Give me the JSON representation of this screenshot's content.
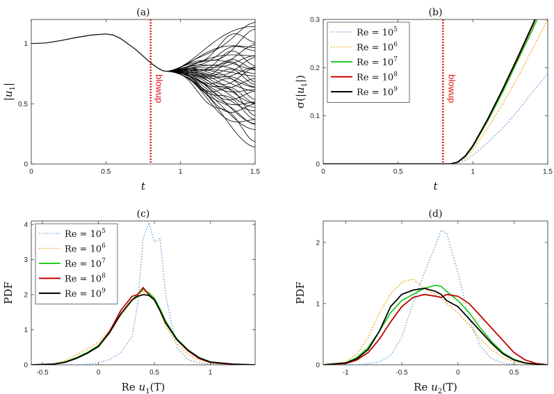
{
  "chart_data": [
    {
      "id": "a",
      "type": "line",
      "title": "(a)",
      "xlabel": "t",
      "ylabel": "|u1|",
      "xlim": [
        0,
        1.5
      ],
      "ylim": [
        0,
        1.2
      ],
      "xticks": [
        "0",
        "0.5",
        "1",
        "1.5"
      ],
      "yticks": [
        "0",
        "0.5",
        "1"
      ],
      "annotation": {
        "text": "blowup",
        "x": 0.8,
        "color": "#e01010"
      },
      "common_curve": {
        "x": [
          0,
          0.1,
          0.2,
          0.3,
          0.4,
          0.5,
          0.55,
          0.6,
          0.7,
          0.8,
          0.85,
          0.88,
          0.9
        ],
        "y": [
          1.0,
          1.005,
          1.025,
          1.05,
          1.07,
          1.08,
          1.07,
          1.04,
          0.95,
          0.84,
          0.795,
          0.775,
          0.77
        ]
      },
      "ensemble_endpoints": [
        1.18,
        1.12,
        1.08,
        1.05,
        1.02,
        0.98,
        0.95,
        0.92,
        0.9,
        0.88,
        0.86,
        0.84,
        0.82,
        0.8,
        0.78,
        0.77,
        0.75,
        0.73,
        0.72,
        0.7,
        0.68,
        0.66,
        0.64,
        0.62,
        0.6,
        0.58,
        0.56,
        0.54,
        0.52,
        0.5,
        0.48,
        0.46,
        0.44,
        0.42,
        0.4,
        0.37,
        0.34,
        0.3,
        0.27,
        0.24
      ],
      "grid": false
    },
    {
      "id": "b",
      "type": "line",
      "title": "(b)",
      "xlabel": "t",
      "ylabel": "σ(|u1|)",
      "xlim": [
        0,
        1.5
      ],
      "ylim": [
        0,
        0.3
      ],
      "xticks": [
        "0",
        "0.5",
        "1",
        "1.5"
      ],
      "yticks": [
        "0",
        "0.1",
        "0.2",
        "0.3"
      ],
      "annotation": {
        "text": "blowup",
        "x": 0.8,
        "color": "#e01010"
      },
      "legend_position": "top-left",
      "x": [
        0,
        0.8,
        0.85,
        0.9,
        0.95,
        1.0,
        1.1,
        1.2,
        1.3,
        1.4,
        1.5
      ],
      "series": [
        {
          "name": "Re = 10^5",
          "color": "#6fa8dc",
          "dash": "dot",
          "values": [
            0,
            0,
            0,
            0.002,
            0.008,
            0.018,
            0.045,
            0.075,
            0.11,
            0.15,
            0.188
          ]
        },
        {
          "name": "Re = 10^6",
          "color": "#f0a000",
          "dash": "dot",
          "values": [
            0,
            0,
            0,
            0.003,
            0.013,
            0.03,
            0.075,
            0.125,
            0.18,
            0.24,
            0.3
          ]
        },
        {
          "name": "Re = 10^7",
          "color": "#22cc22",
          "dash": "solid",
          "values": [
            0,
            0,
            0,
            0.004,
            0.016,
            0.036,
            0.09,
            0.15,
            0.215,
            0.28,
            0.35
          ]
        },
        {
          "name": "Re = 10^8",
          "color": "#c00000",
          "dash": "solid",
          "values": [
            0,
            0,
            0,
            0.004,
            0.017,
            0.038,
            0.093,
            0.155,
            0.22,
            0.288,
            0.36
          ]
        },
        {
          "name": "Re = 10^9",
          "color": "#000000",
          "dash": "solid",
          "values": [
            0,
            0,
            0,
            0.004,
            0.017,
            0.038,
            0.094,
            0.156,
            0.222,
            0.29,
            0.36
          ]
        }
      ],
      "grid": false
    },
    {
      "id": "c",
      "type": "line",
      "title": "(c)",
      "xlabel": "Re u1(T)",
      "ylabel": "PDF",
      "xlim": [
        -0.6,
        1.4
      ],
      "ylim": [
        0,
        4.1
      ],
      "xticks": [
        "-0.5",
        "0",
        "0.5",
        "1"
      ],
      "yticks": [
        "0",
        "1",
        "2",
        "3",
        "4"
      ],
      "legend_position": "top-left",
      "x": [
        -0.6,
        -0.4,
        -0.3,
        -0.2,
        -0.1,
        0,
        0.1,
        0.2,
        0.3,
        0.35,
        0.4,
        0.45,
        0.5,
        0.55,
        0.6,
        0.7,
        0.8,
        0.9,
        1.0,
        1.2,
        1.4
      ],
      "series": [
        {
          "name": "Re = 10^5",
          "color": "#6fa8dc",
          "dash": "dot",
          "values": [
            0,
            0,
            0,
            0,
            0.02,
            0.06,
            0.15,
            0.35,
            0.8,
            1.7,
            3.6,
            4.05,
            3.5,
            3.6,
            2.0,
            0.5,
            0.15,
            0.05,
            0.02,
            0,
            0
          ]
        },
        {
          "name": "Re = 10^6",
          "color": "#f0a000",
          "dash": "dot",
          "values": [
            0,
            0.03,
            0.12,
            0.28,
            0.45,
            0.65,
            1.0,
            1.4,
            1.8,
            1.95,
            2.1,
            2.05,
            1.9,
            1.55,
            1.1,
            0.6,
            0.3,
            0.12,
            0.05,
            0.01,
            0
          ]
        },
        {
          "name": "Re = 10^7",
          "color": "#22cc22",
          "dash": "solid",
          "values": [
            0,
            0.02,
            0.08,
            0.2,
            0.35,
            0.55,
            0.95,
            1.45,
            1.85,
            2.0,
            2.15,
            2.05,
            1.9,
            1.6,
            1.25,
            0.75,
            0.42,
            0.2,
            0.08,
            0.02,
            0
          ]
        },
        {
          "name": "Re = 10^8",
          "color": "#c00000",
          "dash": "solid",
          "values": [
            0,
            0.02,
            0.07,
            0.18,
            0.33,
            0.52,
            0.95,
            1.55,
            1.95,
            2.0,
            2.2,
            2.0,
            1.85,
            1.55,
            1.2,
            0.72,
            0.4,
            0.18,
            0.07,
            0.01,
            0
          ]
        },
        {
          "name": "Re = 10^9",
          "color": "#000000",
          "dash": "solid",
          "values": [
            0,
            0.02,
            0.07,
            0.18,
            0.33,
            0.52,
            0.92,
            1.45,
            1.85,
            1.95,
            2.0,
            1.98,
            1.85,
            1.55,
            1.2,
            0.72,
            0.42,
            0.2,
            0.08,
            0.02,
            0
          ]
        }
      ],
      "grid": false
    },
    {
      "id": "d",
      "type": "line",
      "title": "(d)",
      "xlabel": "Re u2(T)",
      "ylabel": "PDF",
      "xlim": [
        -1.2,
        0.8
      ],
      "ylim": [
        0,
        2.35
      ],
      "xticks": [
        "-1",
        "-0.5",
        "0",
        "0.5"
      ],
      "yticks": [
        "0",
        "1",
        "2"
      ],
      "x": [
        -1.2,
        -1.0,
        -0.9,
        -0.8,
        -0.7,
        -0.6,
        -0.5,
        -0.4,
        -0.3,
        -0.2,
        -0.15,
        -0.1,
        0,
        0.1,
        0.2,
        0.3,
        0.4,
        0.5,
        0.6,
        0.7,
        0.8
      ],
      "series": [
        {
          "name": "Re = 10^5",
          "color": "#6fa8dc",
          "dash": "dot",
          "values": [
            0,
            0,
            0,
            0.02,
            0.05,
            0.15,
            0.45,
            1.0,
            1.5,
            1.95,
            2.2,
            2.15,
            1.5,
            0.75,
            0.3,
            0.1,
            0.03,
            0.01,
            0,
            0,
            0
          ]
        },
        {
          "name": "Re = 10^6",
          "color": "#f0a000",
          "dash": "dot",
          "values": [
            0,
            0.05,
            0.18,
            0.45,
            0.85,
            1.15,
            1.35,
            1.4,
            1.25,
            1.15,
            1.1,
            1.0,
            0.85,
            0.65,
            0.42,
            0.25,
            0.12,
            0.05,
            0.02,
            0,
            0
          ]
        },
        {
          "name": "Re = 10^7",
          "color": "#22cc22",
          "dash": "solid",
          "values": [
            0,
            0.03,
            0.12,
            0.28,
            0.55,
            0.85,
            1.05,
            1.15,
            1.25,
            1.3,
            1.28,
            1.2,
            1.05,
            0.85,
            0.6,
            0.38,
            0.2,
            0.09,
            0.03,
            0.01,
            0
          ]
        },
        {
          "name": "Re = 10^8",
          "color": "#c00000",
          "dash": "solid",
          "values": [
            0,
            0.02,
            0.08,
            0.2,
            0.42,
            0.7,
            0.95,
            1.1,
            1.15,
            1.12,
            1.1,
            1.15,
            1.12,
            1.0,
            0.8,
            0.6,
            0.4,
            0.2,
            0.08,
            0.02,
            0
          ]
        },
        {
          "name": "Re = 10^9",
          "color": "#000000",
          "dash": "solid",
          "values": [
            0,
            0.03,
            0.1,
            0.25,
            0.55,
            0.95,
            1.15,
            1.22,
            1.25,
            1.2,
            1.15,
            1.05,
            0.95,
            0.75,
            0.55,
            0.35,
            0.18,
            0.08,
            0.03,
            0.01,
            0
          ]
        }
      ],
      "grid": false
    }
  ]
}
